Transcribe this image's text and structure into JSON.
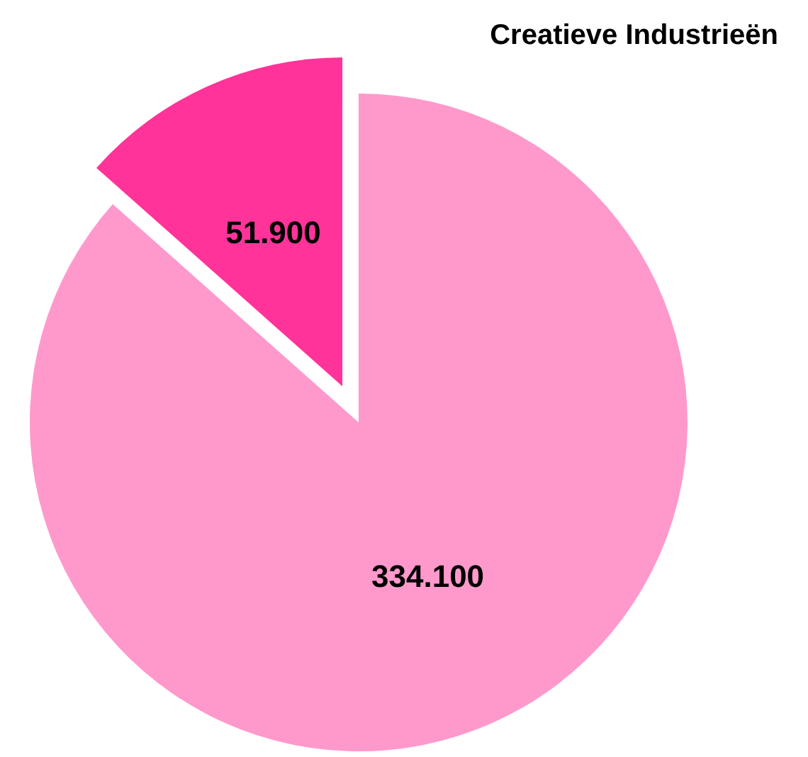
{
  "chart_data": {
    "type": "pie",
    "title": "Creatieve Industrieën",
    "categories": [
      null,
      null
    ],
    "values": [
      51900,
      334100
    ],
    "value_labels": [
      "51.900",
      "334.100"
    ],
    "colors": [
      "#ff3399",
      "#ff99cc"
    ],
    "legend": false
  }
}
